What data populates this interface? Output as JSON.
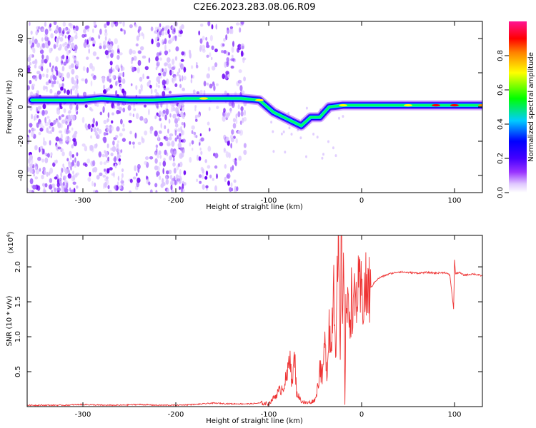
{
  "title": "C2E6.2023.283.08.06.R09",
  "chart_data": [
    {
      "type": "heatmap",
      "xlabel": "Height of straight line (km)",
      "ylabel": "Frequency (Hz)",
      "xlim": [
        -360,
        130
      ],
      "ylim": [
        -50,
        50
      ],
      "x_ticks": [
        -300,
        -200,
        -100,
        0,
        100
      ],
      "y_ticks": [
        -40,
        -20,
        0,
        20,
        40
      ],
      "colorbar": {
        "label": "Normalized spectral amplitude",
        "range": [
          0,
          1
        ],
        "ticks": [
          "0.0",
          "0.2",
          "0.4",
          "0.6",
          "0.8"
        ],
        "colors": [
          "#ffffff",
          "#cc99ff",
          "#7b00ff",
          "#0000ff",
          "#00e5ff",
          "#00ff00",
          "#ffff00",
          "#ff8000",
          "#ff0000",
          "#ff1493"
        ]
      },
      "ridge": [
        {
          "x": -355,
          "y": 4,
          "amp": 0.45
        },
        {
          "x": -330,
          "y": 4,
          "amp": 0.5
        },
        {
          "x": -300,
          "y": 4,
          "amp": 0.45
        },
        {
          "x": -280,
          "y": 5,
          "amp": 0.55
        },
        {
          "x": -250,
          "y": 4,
          "amp": 0.45
        },
        {
          "x": -225,
          "y": 4,
          "amp": 0.45
        },
        {
          "x": -190,
          "y": 5,
          "amp": 0.55
        },
        {
          "x": -170,
          "y": 5,
          "amp": 0.65
        },
        {
          "x": -150,
          "y": 5,
          "amp": 0.55
        },
        {
          "x": -130,
          "y": 5,
          "amp": 0.55
        },
        {
          "x": -110,
          "y": 4,
          "amp": 0.65
        },
        {
          "x": -95,
          "y": -3,
          "amp": 0.55
        },
        {
          "x": -80,
          "y": -7,
          "amp": 0.55
        },
        {
          "x": -65,
          "y": -11,
          "amp": 0.5
        },
        {
          "x": -55,
          "y": -6,
          "amp": 0.45
        },
        {
          "x": -45,
          "y": -6,
          "amp": 0.5
        },
        {
          "x": -35,
          "y": 0,
          "amp": 0.4
        },
        {
          "x": -20,
          "y": 1,
          "amp": 0.6
        },
        {
          "x": -5,
          "y": 1,
          "amp": 0.55
        },
        {
          "x": 20,
          "y": 1,
          "amp": 0.5
        },
        {
          "x": 50,
          "y": 1,
          "amp": 0.65
        },
        {
          "x": 80,
          "y": 1,
          "amp": 0.85
        },
        {
          "x": 100,
          "y": 1,
          "amp": 0.8
        },
        {
          "x": 130,
          "y": 1,
          "amp": 0.75
        }
      ]
    },
    {
      "type": "line",
      "xlabel": "Height of straight line (km)",
      "ylabel": "SNR (10 * v/v)",
      "y_multiplier": "(x10",
      "y_multiplier_exp": "4",
      "y_multiplier_close": ")",
      "xlim": [
        -360,
        130
      ],
      "ylim": [
        0,
        2.45
      ],
      "x_ticks": [
        -300,
        -200,
        -100,
        0,
        100
      ],
      "y_ticks": [
        "0.5",
        "1.0",
        "1.5",
        "2.0"
      ],
      "line_color": "#ee3333",
      "series": [
        {
          "x": [
            -360,
            -340,
            -320,
            -300,
            -280,
            -260,
            -240,
            -220,
            -200,
            -180,
            -160,
            -140,
            -120,
            -110,
            -100,
            -95,
            -90,
            -85,
            -80,
            -77,
            -75,
            -72,
            -70,
            -65,
            -60,
            -55,
            -50,
            -47,
            -45,
            -42,
            -40,
            -37,
            -35,
            -33,
            -30,
            -28,
            -25,
            -23,
            -22,
            -20,
            -19,
            -18,
            -17,
            -15,
            -12,
            -10,
            -8,
            -5,
            0,
            5,
            10,
            15,
            20,
            30,
            40,
            50,
            60,
            70,
            80,
            90,
            95,
            99,
            100,
            101,
            105,
            110,
            120,
            130
          ],
          "y": [
            0.02,
            0.02,
            0.02,
            0.03,
            0.02,
            0.02,
            0.03,
            0.02,
            0.02,
            0.03,
            0.05,
            0.04,
            0.04,
            0.05,
            0.04,
            0.12,
            0.2,
            0.28,
            0.42,
            0.85,
            0.3,
            0.72,
            0.2,
            0.08,
            0.05,
            0.06,
            0.1,
            0.3,
            0.6,
            0.4,
            0.9,
            0.5,
            1.3,
            0.7,
            1.95,
            0.9,
            2.2,
            0.6,
            2.45,
            1.3,
            2.0,
            0.05,
            1.5,
            1.3,
            1.45,
            1.6,
            1.4,
            1.62,
            1.58,
            1.65,
            1.7,
            1.8,
            1.85,
            1.9,
            1.93,
            1.92,
            1.91,
            1.92,
            1.91,
            1.92,
            1.88,
            1.4,
            2.1,
            1.9,
            1.92,
            1.88,
            1.9,
            1.87
          ]
        }
      ]
    }
  ]
}
